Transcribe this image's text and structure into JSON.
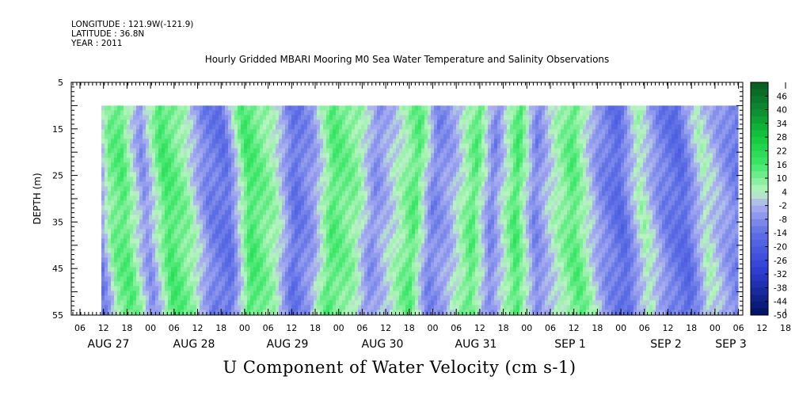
{
  "header": {
    "longitude": "LONGITUDE : 121.9W(-121.9)",
    "latitude": "LATITUDE : 36.8N",
    "year": "YEAR : 2011"
  },
  "colors": {
    "green_dark": "#0f6b2a",
    "green_bright": "#1ee64a",
    "green_light": "#a8f0b0",
    "blue_light": "#aab0f0",
    "blue_mid": "#5f70e6",
    "blue_dark": "#001060"
  },
  "chart_data": {
    "type": "heatmap",
    "title": "Hourly Gridded MBARI Mooring M0 Sea Water Temperature and Salinity Observations",
    "xlabel": "",
    "ylabel": "DEPTH (m)",
    "bottom_title": "U Component of Water Velocity (cm s-1)",
    "ylim": [
      5,
      55
    ],
    "y_ticks": [
      5,
      15,
      25,
      35,
      45,
      55
    ],
    "x_hour_ticks": [
      "06",
      "12",
      "18",
      "00",
      "06",
      "12",
      "18",
      "00",
      "06",
      "12",
      "18",
      "00",
      "06",
      "12",
      "18",
      "00",
      "06",
      "12",
      "18",
      "00",
      "06",
      "12",
      "18",
      "00",
      "06",
      "12",
      "18",
      "00",
      "06",
      "12",
      "18",
      "00"
    ],
    "date_labels": [
      "AUG 27",
      "AUG 28",
      "AUG 29",
      "AUG 30",
      "AUG 31",
      "SEP  1",
      "SEP  2",
      "SEP  3"
    ],
    "colorbar_labels": [
      "46",
      "40",
      "34",
      "28",
      "22",
      "16",
      "10",
      "4",
      "-2",
      "-8",
      "-14",
      "-20",
      "-26",
      "-32",
      "-38",
      "-44",
      "-50"
    ],
    "colorbar_range": [
      -50,
      52
    ],
    "data_depth_range": [
      10,
      55
    ],
    "band_pattern": [
      {
        "x": 0.0,
        "v": -12
      },
      {
        "x": 0.02,
        "v": 10
      },
      {
        "x": 0.04,
        "v": 14
      },
      {
        "x": 0.07,
        "v": -8
      },
      {
        "x": 0.1,
        "v": 16
      },
      {
        "x": 0.13,
        "v": 8
      },
      {
        "x": 0.16,
        "v": -10
      },
      {
        "x": 0.19,
        "v": -14
      },
      {
        "x": 0.22,
        "v": 16
      },
      {
        "x": 0.26,
        "v": 6
      },
      {
        "x": 0.29,
        "v": -14
      },
      {
        "x": 0.32,
        "v": -6
      },
      {
        "x": 0.35,
        "v": 14
      },
      {
        "x": 0.39,
        "v": 8
      },
      {
        "x": 0.42,
        "v": -8
      },
      {
        "x": 0.46,
        "v": 4
      },
      {
        "x": 0.49,
        "v": 14
      },
      {
        "x": 0.52,
        "v": -10
      },
      {
        "x": 0.55,
        "v": -4
      },
      {
        "x": 0.59,
        "v": 14
      },
      {
        "x": 0.62,
        "v": -10
      },
      {
        "x": 0.66,
        "v": 16
      },
      {
        "x": 0.69,
        "v": -10
      },
      {
        "x": 0.72,
        "v": 4
      },
      {
        "x": 0.75,
        "v": 14
      },
      {
        "x": 0.79,
        "v": -8
      },
      {
        "x": 0.82,
        "v": -16
      },
      {
        "x": 0.85,
        "v": 6
      },
      {
        "x": 0.88,
        "v": -10
      },
      {
        "x": 0.91,
        "v": -16
      },
      {
        "x": 0.94,
        "v": 4
      },
      {
        "x": 0.97,
        "v": -6
      },
      {
        "x": 1.0,
        "v": -14
      }
    ]
  }
}
